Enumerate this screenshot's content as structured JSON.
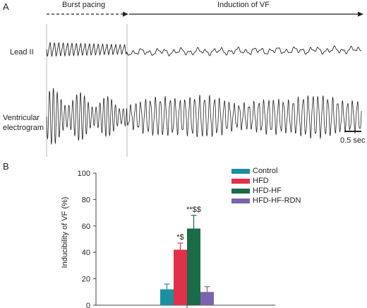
{
  "panel_a": {
    "label": "A",
    "phase1": "Burst pacing",
    "phase2": "Induction of VF",
    "lead2_label": "Lead II",
    "ventricular_label_line1": "Ventricular",
    "ventricular_label_line2": "electrogram",
    "scale_label": "0.5 sec"
  },
  "panel_b": {
    "label": "B"
  },
  "chart_data": {
    "type": "bar",
    "categories": [
      "Control",
      "HFD",
      "HFD-HF",
      "HFD-HF-RDN"
    ],
    "values": [
      12,
      42,
      58,
      10
    ],
    "errors": [
      4,
      5,
      10,
      4
    ],
    "annotations": [
      "",
      "*$",
      "**$$",
      ""
    ],
    "colors": [
      "#1a8fa0",
      "#e2304a",
      "#1a6b47",
      "#7b63ad"
    ],
    "ylabel": "Inducibility of VF (%)",
    "ylim": [
      0,
      100
    ],
    "yticks": [
      0,
      20,
      40,
      60,
      80,
      100
    ],
    "legend": [
      "Control",
      "HFD",
      "HFD-HF",
      "HFD-HF-RDN"
    ],
    "legend_position": "top-right"
  }
}
